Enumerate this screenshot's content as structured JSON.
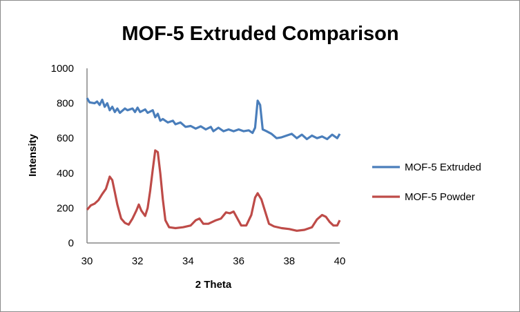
{
  "chart_data": {
    "type": "line",
    "title": "MOF-5 Extruded Comparison",
    "xlabel": "2 Theta",
    "ylabel": "Intensity",
    "xlim": [
      30,
      40
    ],
    "ylim": [
      0,
      1000
    ],
    "xticks": [
      "30",
      "32",
      "34",
      "36",
      "38",
      "40"
    ],
    "yticks": [
      "0",
      "200",
      "400",
      "600",
      "800",
      "1000"
    ],
    "grid": false,
    "legend_position": "right",
    "series": [
      {
        "name": "MOF-5 Extruded",
        "color": "#4a7ebb",
        "points": [
          [
            30,
            830
          ],
          [
            30.1,
            805
          ],
          [
            30.3,
            800
          ],
          [
            30.4,
            810
          ],
          [
            30.5,
            790
          ],
          [
            30.6,
            820
          ],
          [
            30.7,
            780
          ],
          [
            30.8,
            800
          ],
          [
            30.9,
            760
          ],
          [
            31,
            780
          ],
          [
            31.1,
            750
          ],
          [
            31.2,
            770
          ],
          [
            31.3,
            745
          ],
          [
            31.5,
            770
          ],
          [
            31.6,
            760
          ],
          [
            31.8,
            770
          ],
          [
            31.9,
            750
          ],
          [
            32,
            775
          ],
          [
            32.1,
            750
          ],
          [
            32.3,
            765
          ],
          [
            32.4,
            745
          ],
          [
            32.6,
            760
          ],
          [
            32.7,
            720
          ],
          [
            32.8,
            740
          ],
          [
            32.9,
            700
          ],
          [
            33,
            710
          ],
          [
            33.2,
            690
          ],
          [
            33.4,
            700
          ],
          [
            33.5,
            680
          ],
          [
            33.7,
            690
          ],
          [
            33.9,
            665
          ],
          [
            34.1,
            670
          ],
          [
            34.3,
            655
          ],
          [
            34.5,
            668
          ],
          [
            34.7,
            650
          ],
          [
            34.9,
            665
          ],
          [
            35,
            640
          ],
          [
            35.2,
            660
          ],
          [
            35.4,
            640
          ],
          [
            35.6,
            650
          ],
          [
            35.8,
            640
          ],
          [
            36,
            650
          ],
          [
            36.2,
            640
          ],
          [
            36.4,
            645
          ],
          [
            36.55,
            630
          ],
          [
            36.65,
            660
          ],
          [
            36.75,
            815
          ],
          [
            36.85,
            790
          ],
          [
            36.95,
            650
          ],
          [
            37.1,
            640
          ],
          [
            37.3,
            625
          ],
          [
            37.5,
            600
          ],
          [
            37.7,
            605
          ],
          [
            37.9,
            615
          ],
          [
            38.1,
            625
          ],
          [
            38.3,
            600
          ],
          [
            38.5,
            620
          ],
          [
            38.7,
            595
          ],
          [
            38.9,
            615
          ],
          [
            39.1,
            600
          ],
          [
            39.3,
            610
          ],
          [
            39.5,
            595
          ],
          [
            39.7,
            620
          ],
          [
            39.9,
            600
          ],
          [
            40,
            625
          ]
        ]
      },
      {
        "name": "MOF-5 Powder",
        "color": "#be4b48",
        "points": [
          [
            30,
            190
          ],
          [
            30.15,
            215
          ],
          [
            30.3,
            225
          ],
          [
            30.45,
            245
          ],
          [
            30.6,
            280
          ],
          [
            30.75,
            310
          ],
          [
            30.9,
            380
          ],
          [
            31,
            360
          ],
          [
            31.1,
            290
          ],
          [
            31.2,
            220
          ],
          [
            31.35,
            140
          ],
          [
            31.5,
            115
          ],
          [
            31.65,
            105
          ],
          [
            31.8,
            140
          ],
          [
            31.95,
            185
          ],
          [
            32.05,
            220
          ],
          [
            32.15,
            185
          ],
          [
            32.3,
            155
          ],
          [
            32.4,
            200
          ],
          [
            32.5,
            300
          ],
          [
            32.6,
            420
          ],
          [
            32.7,
            530
          ],
          [
            32.8,
            520
          ],
          [
            32.9,
            400
          ],
          [
            33,
            250
          ],
          [
            33.1,
            130
          ],
          [
            33.25,
            90
          ],
          [
            33.5,
            85
          ],
          [
            33.8,
            90
          ],
          [
            34.1,
            100
          ],
          [
            34.3,
            130
          ],
          [
            34.45,
            140
          ],
          [
            34.6,
            110
          ],
          [
            34.8,
            110
          ],
          [
            35.1,
            130
          ],
          [
            35.3,
            140
          ],
          [
            35.5,
            175
          ],
          [
            35.65,
            170
          ],
          [
            35.8,
            180
          ],
          [
            35.95,
            140
          ],
          [
            36.1,
            100
          ],
          [
            36.3,
            100
          ],
          [
            36.5,
            160
          ],
          [
            36.65,
            260
          ],
          [
            36.75,
            285
          ],
          [
            36.9,
            250
          ],
          [
            37.05,
            180
          ],
          [
            37.2,
            110
          ],
          [
            37.4,
            95
          ],
          [
            37.7,
            85
          ],
          [
            38,
            80
          ],
          [
            38.3,
            70
          ],
          [
            38.6,
            75
          ],
          [
            38.9,
            90
          ],
          [
            39.1,
            135
          ],
          [
            39.3,
            160
          ],
          [
            39.45,
            150
          ],
          [
            39.6,
            120
          ],
          [
            39.75,
            100
          ],
          [
            39.9,
            100
          ],
          [
            40,
            130
          ]
        ]
      }
    ]
  }
}
